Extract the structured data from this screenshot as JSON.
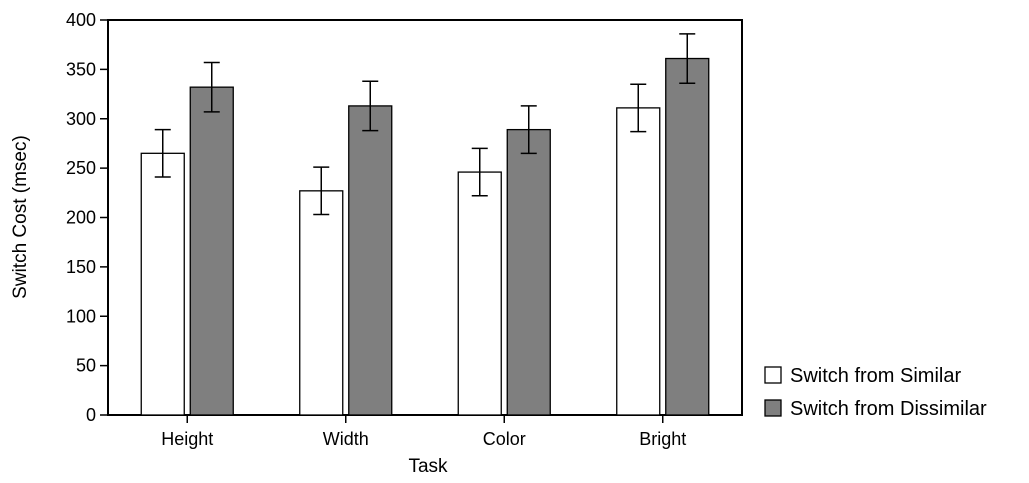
{
  "chart_data": {
    "type": "bar",
    "title": "",
    "xlabel": "Task",
    "ylabel": "Switch Cost (msec)",
    "ylim": [
      0,
      400
    ],
    "yticks": [
      0,
      50,
      100,
      150,
      200,
      250,
      300,
      350,
      400
    ],
    "categories": [
      "Height",
      "Width",
      "Color",
      "Bright"
    ],
    "series": [
      {
        "name": "Switch from Similar",
        "color": "#ffffff",
        "values": [
          265,
          227,
          246,
          311
        ],
        "error": [
          24,
          24,
          24,
          24
        ]
      },
      {
        "name": "Switch from Dissimilar",
        "color": "#7f7f7f",
        "values": [
          332,
          313,
          289,
          361
        ],
        "error": [
          25,
          25,
          24,
          25
        ]
      }
    ],
    "grid": false,
    "legend_position": "right"
  }
}
